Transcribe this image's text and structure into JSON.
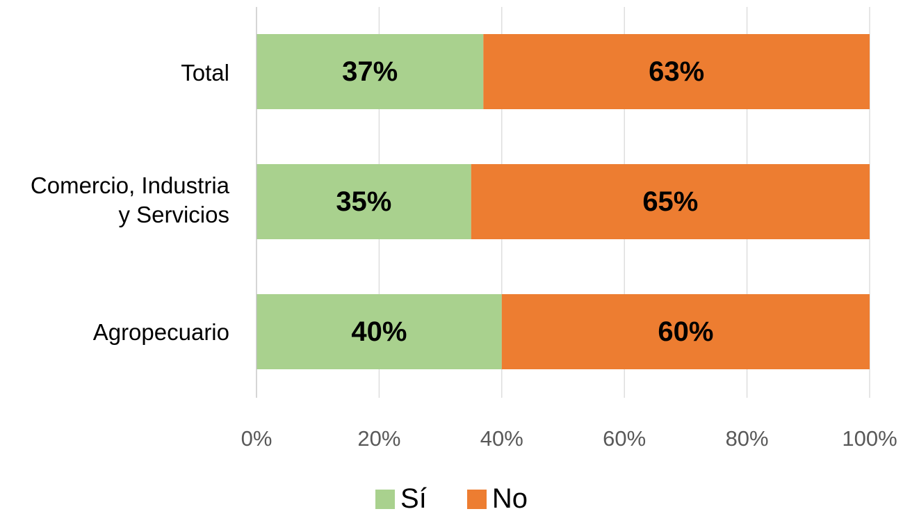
{
  "chart_data": {
    "type": "bar",
    "orientation": "horizontal",
    "stacked": true,
    "percent": true,
    "categories": [
      "Total",
      "Comercio, Industria y Servicios",
      "Agropecuario"
    ],
    "category_lines": [
      [
        "Total"
      ],
      [
        "Comercio, Industria",
        "y Servicios"
      ],
      [
        "Agropecuario"
      ]
    ],
    "series": [
      {
        "name": "Sí",
        "values": [
          37,
          35,
          40
        ],
        "labels": [
          "37%",
          "35%",
          "40%"
        ],
        "color": "#a9d18e"
      },
      {
        "name": "No",
        "values": [
          63,
          65,
          60
        ],
        "labels": [
          "63%",
          "65%",
          "60%"
        ],
        "color": "#ed7d31"
      }
    ],
    "xlim": [
      0,
      100
    ],
    "x_ticks": [
      0,
      20,
      40,
      60,
      80,
      100
    ],
    "x_tick_labels": [
      "0%",
      "20%",
      "40%",
      "60%",
      "80%",
      "100%"
    ],
    "grid": true,
    "legend_position": "bottom",
    "title": "",
    "xlabel": "",
    "ylabel": ""
  }
}
